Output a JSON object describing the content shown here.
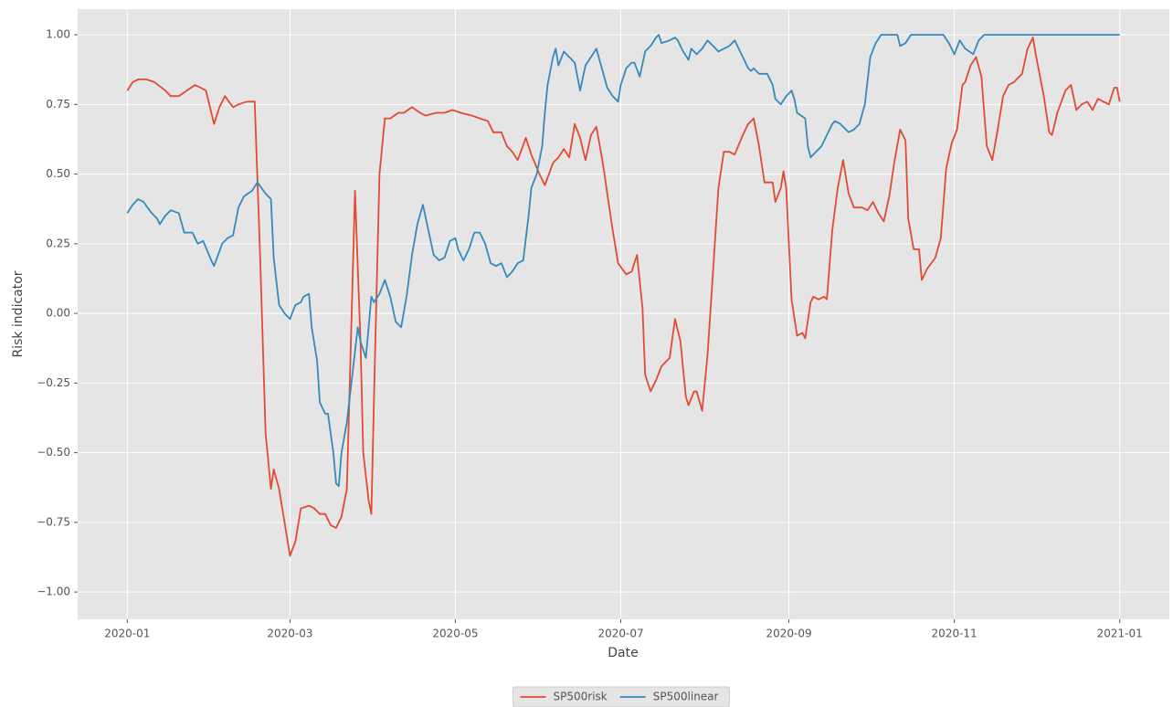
{
  "chart_data": {
    "type": "line",
    "xlabel": "Date",
    "ylabel": "Risk indicator",
    "xlim": [
      -18.3,
      384.3
    ],
    "xticks": [
      {
        "value": 0,
        "label": "2020-01"
      },
      {
        "value": 60,
        "label": "2020-03"
      },
      {
        "value": 121,
        "label": "2020-05"
      },
      {
        "value": 182,
        "label": "2020-07"
      },
      {
        "value": 244,
        "label": "2020-09"
      },
      {
        "value": 305,
        "label": "2020-11"
      },
      {
        "value": 366,
        "label": "2021-01"
      }
    ],
    "ylim": [
      -1.098,
      1.092
    ],
    "yticks": [
      {
        "value": -1,
        "label": "−1.00"
      },
      {
        "value": -0.75,
        "label": "−0.75"
      },
      {
        "value": -0.5,
        "label": "−0.50"
      },
      {
        "value": -0.25,
        "label": "−0.25"
      },
      {
        "value": 0,
        "label": "0.00"
      },
      {
        "value": 0.25,
        "label": "0.25"
      },
      {
        "value": 0.5,
        "label": "0.50"
      },
      {
        "value": 0.75,
        "label": "0.75"
      },
      {
        "value": 1,
        "label": "1.00"
      }
    ],
    "grid": true,
    "legend": "bottom",
    "series": [
      {
        "name": "SP500risk",
        "color": "#E24A33",
        "x": [
          0,
          2,
          4,
          7,
          10,
          14,
          16,
          19,
          22,
          25,
          27,
          29,
          32,
          34,
          36,
          39,
          41,
          44,
          47,
          49,
          51,
          53,
          54,
          56,
          58,
          60,
          62,
          64,
          67,
          69,
          71,
          73,
          75,
          77,
          79,
          81,
          84,
          86,
          87,
          89,
          90,
          91,
          93,
          95,
          97,
          100,
          102,
          105,
          108,
          110,
          114,
          117,
          120,
          123,
          127,
          130,
          133,
          135,
          138,
          140,
          142,
          144,
          147,
          149,
          152,
          154,
          157,
          159,
          161,
          163,
          165,
          167,
          169,
          171,
          173,
          175,
          176,
          177,
          179,
          181,
          184,
          186,
          188,
          190,
          191,
          193,
          195,
          197,
          200,
          202,
          204,
          206,
          207,
          209,
          210,
          212,
          214,
          216,
          218,
          220,
          222,
          224,
          227,
          229,
          231,
          233,
          235,
          238,
          239,
          241,
          242,
          243,
          245,
          247,
          249,
          250,
          252,
          253,
          255,
          257,
          258,
          260,
          262,
          264,
          266,
          268,
          271,
          273,
          275,
          277,
          279,
          281,
          283,
          285,
          287,
          288,
          290,
          292,
          293,
          295,
          298,
          300,
          302,
          304,
          306,
          308,
          309,
          311,
          313,
          315,
          317,
          319,
          321,
          323,
          325,
          327,
          330,
          332,
          334,
          335,
          338,
          340,
          341,
          343,
          346,
          348,
          350,
          352,
          354,
          356,
          358,
          360,
          362,
          364,
          365,
          366
        ],
        "values": [
          0.8,
          0.83,
          0.84,
          0.84,
          0.83,
          0.8,
          0.78,
          0.78,
          0.8,
          0.82,
          0.81,
          0.8,
          0.68,
          0.74,
          0.78,
          0.74,
          0.75,
          0.76,
          0.76,
          0.2,
          -0.43,
          -0.63,
          -0.56,
          -0.63,
          -0.75,
          -0.87,
          -0.82,
          -0.7,
          -0.69,
          -0.7,
          -0.72,
          -0.72,
          -0.76,
          -0.77,
          -0.73,
          -0.63,
          0.44,
          -0.1,
          -0.5,
          -0.67,
          -0.72,
          -0.3,
          0.5,
          0.7,
          0.7,
          0.72,
          0.72,
          0.74,
          0.72,
          0.71,
          0.72,
          0.72,
          0.73,
          0.72,
          0.71,
          0.7,
          0.69,
          0.65,
          0.65,
          0.6,
          0.58,
          0.55,
          0.63,
          0.57,
          0.5,
          0.46,
          0.54,
          0.56,
          0.59,
          0.56,
          0.68,
          0.63,
          0.55,
          0.64,
          0.67,
          0.56,
          0.5,
          0.43,
          0.3,
          0.18,
          0.14,
          0.15,
          0.21,
          0.02,
          -0.22,
          -0.28,
          -0.24,
          -0.19,
          -0.16,
          -0.02,
          -0.1,
          -0.3,
          -0.33,
          -0.28,
          -0.28,
          -0.35,
          -0.15,
          0.15,
          0.45,
          0.58,
          0.58,
          0.57,
          0.64,
          0.68,
          0.7,
          0.6,
          0.47,
          0.47,
          0.4,
          0.45,
          0.51,
          0.45,
          0.05,
          -0.08,
          -0.07,
          -0.09,
          0.04,
          0.06,
          0.05,
          0.06,
          0.05,
          0.3,
          0.45,
          0.55,
          0.43,
          0.38,
          0.38,
          0.37,
          0.4,
          0.36,
          0.33,
          0.42,
          0.55,
          0.66,
          0.62,
          0.34,
          0.23,
          0.23,
          0.12,
          0.16,
          0.2,
          0.27,
          0.52,
          0.61,
          0.66,
          0.82,
          0.83,
          0.89,
          0.92,
          0.85,
          0.6,
          0.55,
          0.66,
          0.78,
          0.82,
          0.83,
          0.86,
          0.95,
          0.99,
          0.93,
          0.78,
          0.65,
          0.64,
          0.72,
          0.8,
          0.82,
          0.73,
          0.75,
          0.76,
          0.73,
          0.77,
          0.76,
          0.75,
          0.81,
          0.81,
          0.76
        ]
      },
      {
        "name": "SP500linear",
        "color": "#348ABD",
        "x": [
          0,
          2,
          4,
          6,
          9,
          11,
          12,
          14,
          16,
          19,
          21,
          24,
          26,
          28,
          31,
          32,
          35,
          37,
          39,
          41,
          43,
          46,
          48,
          51,
          53,
          54,
          56,
          58,
          60,
          62,
          64,
          65,
          67,
          68,
          70,
          71,
          73,
          74,
          76,
          77,
          78,
          79,
          81,
          83,
          85,
          86,
          88,
          90,
          91,
          93,
          95,
          97,
          99,
          101,
          103,
          105,
          107,
          109,
          111,
          113,
          115,
          117,
          119,
          121,
          122,
          124,
          126,
          128,
          130,
          132,
          134,
          136,
          138,
          140,
          142,
          144,
          146,
          148,
          149,
          151,
          153,
          154,
          155,
          157,
          158,
          159,
          161,
          163,
          165,
          167,
          169,
          171,
          173,
          175,
          177,
          179,
          181,
          182,
          184,
          186,
          187,
          189,
          191,
          193,
          195,
          196,
          197,
          200,
          202,
          203,
          205,
          207,
          208,
          210,
          212,
          214,
          216,
          218,
          220,
          222,
          224,
          225,
          227,
          229,
          230,
          231,
          233,
          236,
          238,
          239,
          241,
          243,
          245,
          246,
          247,
          250,
          251,
          252,
          254,
          256,
          258,
          260,
          261,
          263,
          265,
          266,
          268,
          270,
          272,
          274,
          276,
          278,
          281,
          284,
          285,
          287,
          289,
          292,
          295,
          298,
          301,
          303,
          305,
          307,
          309,
          312,
          314,
          316,
          320,
          366
        ],
        "values": [
          0.36,
          0.39,
          0.41,
          0.4,
          0.36,
          0.34,
          0.32,
          0.35,
          0.37,
          0.36,
          0.29,
          0.29,
          0.25,
          0.26,
          0.19,
          0.17,
          0.25,
          0.27,
          0.28,
          0.38,
          0.42,
          0.44,
          0.47,
          0.43,
          0.41,
          0.2,
          0.03,
          0.0,
          -0.02,
          0.03,
          0.04,
          0.06,
          0.07,
          -0.05,
          -0.17,
          -0.32,
          -0.36,
          -0.36,
          -0.5,
          -0.61,
          -0.62,
          -0.5,
          -0.39,
          -0.22,
          -0.05,
          -0.1,
          -0.16,
          0.06,
          0.04,
          0.07,
          0.12,
          0.06,
          -0.03,
          -0.05,
          0.06,
          0.21,
          0.32,
          0.39,
          0.3,
          0.21,
          0.19,
          0.2,
          0.26,
          0.27,
          0.23,
          0.19,
          0.23,
          0.29,
          0.29,
          0.25,
          0.18,
          0.17,
          0.18,
          0.13,
          0.15,
          0.18,
          0.19,
          0.35,
          0.45,
          0.5,
          0.6,
          0.72,
          0.82,
          0.92,
          0.95,
          0.89,
          0.94,
          0.92,
          0.9,
          0.8,
          0.89,
          0.92,
          0.95,
          0.88,
          0.81,
          0.78,
          0.76,
          0.82,
          0.88,
          0.9,
          0.9,
          0.85,
          0.94,
          0.96,
          0.99,
          1.0,
          0.97,
          0.98,
          0.99,
          0.98,
          0.94,
          0.91,
          0.95,
          0.93,
          0.95,
          0.98,
          0.96,
          0.94,
          0.95,
          0.96,
          0.98,
          0.96,
          0.92,
          0.88,
          0.87,
          0.88,
          0.86,
          0.86,
          0.82,
          0.77,
          0.75,
          0.78,
          0.8,
          0.77,
          0.72,
          0.7,
          0.6,
          0.56,
          0.58,
          0.6,
          0.64,
          0.68,
          0.69,
          0.68,
          0.66,
          0.65,
          0.66,
          0.68,
          0.75,
          0.92,
          0.97,
          1.0,
          1.0,
          1.0,
          0.96,
          0.97,
          1.0,
          1.0,
          1.0,
          1.0,
          1.0,
          0.97,
          0.93,
          0.98,
          0.95,
          0.93,
          0.98,
          1.0,
          1.0,
          1.0
        ]
      }
    ]
  }
}
